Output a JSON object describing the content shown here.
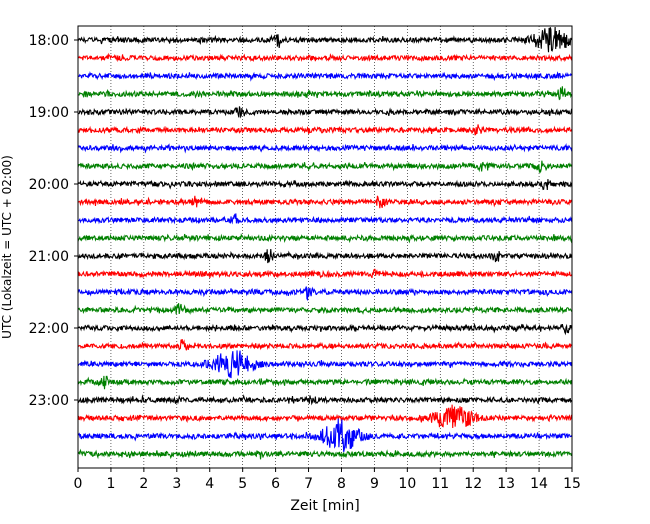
{
  "chart_data": {
    "type": "line",
    "chart_kind": "helicorder",
    "title": "",
    "xlabel": "Zeit  [min]",
    "ylabel": "UTC (Lokalzeit = UTC + 02:00)",
    "xlim": [
      0,
      15
    ],
    "x_ticks": [
      0,
      1,
      2,
      3,
      4,
      5,
      6,
      7,
      8,
      9,
      10,
      11,
      12,
      13,
      14,
      15
    ],
    "x_tick_labels": [
      "0",
      "1",
      "2",
      "3",
      "4",
      "5",
      "6",
      "7",
      "8",
      "9",
      "10",
      "11",
      "12",
      "13",
      "14",
      "15"
    ],
    "x_grid": "dotted vertical lines at each minute",
    "y_tick_labels": [
      "18:00",
      "19:00",
      "20:00",
      "21:00",
      "22:00",
      "23:00"
    ],
    "traces_per_tick_label": 4,
    "trace_minutes": 15,
    "color_cycle": [
      "#000000",
      "#ff0000",
      "#0000ff",
      "#008000"
    ],
    "traces": [
      {
        "start_utc": "18:00",
        "color": "#000000",
        "events": [
          {
            "minute": 6.1,
            "amplitude": 0.55
          },
          {
            "minute": 14.4,
            "amplitude": 1.0
          }
        ]
      },
      {
        "start_utc": "18:15",
        "color": "#ff0000",
        "events": []
      },
      {
        "start_utc": "18:30",
        "color": "#0000ff",
        "events": []
      },
      {
        "start_utc": "18:45",
        "color": "#008000",
        "events": [
          {
            "minute": 14.7,
            "amplitude": 0.5
          }
        ]
      },
      {
        "start_utc": "19:00",
        "color": "#000000",
        "events": [
          {
            "minute": 4.9,
            "amplitude": 0.35
          }
        ]
      },
      {
        "start_utc": "19:15",
        "color": "#ff0000",
        "events": [
          {
            "minute": 12.1,
            "amplitude": 0.45
          }
        ]
      },
      {
        "start_utc": "19:30",
        "color": "#0000ff",
        "events": []
      },
      {
        "start_utc": "19:45",
        "color": "#008000",
        "events": [
          {
            "minute": 12.3,
            "amplitude": 0.45
          },
          {
            "minute": 14.0,
            "amplitude": 0.4
          }
        ]
      },
      {
        "start_utc": "20:00",
        "color": "#000000",
        "events": [
          {
            "minute": 14.2,
            "amplitude": 0.45
          }
        ]
      },
      {
        "start_utc": "20:15",
        "color": "#ff0000",
        "events": [
          {
            "minute": 3.6,
            "amplitude": 0.45
          },
          {
            "minute": 9.2,
            "amplitude": 0.55
          }
        ]
      },
      {
        "start_utc": "20:30",
        "color": "#0000ff",
        "events": [
          {
            "minute": 4.8,
            "amplitude": 0.45
          }
        ]
      },
      {
        "start_utc": "20:45",
        "color": "#008000",
        "events": []
      },
      {
        "start_utc": "21:00",
        "color": "#000000",
        "events": [
          {
            "minute": 5.8,
            "amplitude": 0.55
          },
          {
            "minute": 12.7,
            "amplitude": 0.4
          }
        ]
      },
      {
        "start_utc": "21:15",
        "color": "#ff0000",
        "events": [
          {
            "minute": 9.0,
            "amplitude": 0.35
          }
        ]
      },
      {
        "start_utc": "21:30",
        "color": "#0000ff",
        "events": [
          {
            "minute": 7.0,
            "amplitude": 0.55
          }
        ]
      },
      {
        "start_utc": "21:45",
        "color": "#008000",
        "events": [
          {
            "minute": 3.1,
            "amplitude": 0.6
          }
        ]
      },
      {
        "start_utc": "22:00",
        "color": "#000000",
        "events": [
          {
            "minute": 14.8,
            "amplitude": 0.35
          }
        ]
      },
      {
        "start_utc": "22:15",
        "color": "#ff0000",
        "events": [
          {
            "minute": 3.2,
            "amplitude": 0.6
          }
        ]
      },
      {
        "start_utc": "22:30",
        "color": "#0000ff",
        "events": [
          {
            "minute": 4.7,
            "amplitude": 1.25
          }
        ]
      },
      {
        "start_utc": "22:45",
        "color": "#008000",
        "events": [
          {
            "minute": 0.8,
            "amplitude": 0.55
          }
        ]
      },
      {
        "start_utc": "23:00",
        "color": "#000000",
        "events": [
          {
            "minute": 7.1,
            "amplitude": 0.35
          }
        ]
      },
      {
        "start_utc": "23:15",
        "color": "#ff0000",
        "events": [
          {
            "minute": 11.4,
            "amplitude": 1.0
          }
        ]
      },
      {
        "start_utc": "23:30",
        "color": "#0000ff",
        "events": [
          {
            "minute": 8.0,
            "amplitude": 1.3
          }
        ]
      },
      {
        "start_utc": "23:45",
        "color": "#008000",
        "events": [
          {
            "minute": 5.5,
            "amplitude": 0.3
          }
        ]
      }
    ]
  }
}
